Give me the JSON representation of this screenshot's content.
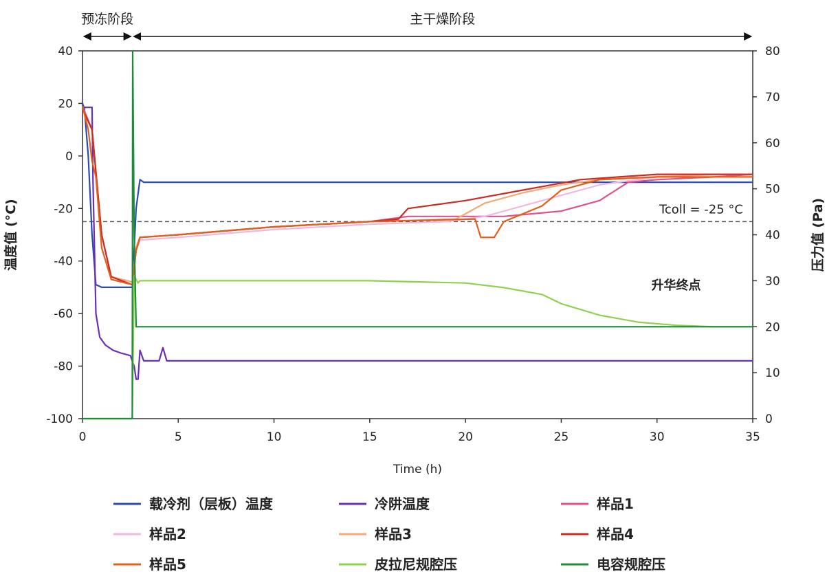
{
  "chart_data": {
    "type": "line",
    "xlabel": "Time (h)",
    "ylabel_left": "温度值 (°C)",
    "ylabel_right": "压力值 (Pa)",
    "xlim": [
      0,
      35
    ],
    "ylim_left": [
      -100,
      40
    ],
    "ylim_right": [
      0,
      80
    ],
    "x_ticks": [
      0,
      5,
      10,
      15,
      20,
      25,
      30,
      35
    ],
    "y_left_ticks": [
      -100,
      -80,
      -60,
      -40,
      -20,
      0,
      20,
      40
    ],
    "y_right_ticks": [
      0,
      10,
      20,
      30,
      40,
      50,
      60,
      70,
      80
    ],
    "grid": false,
    "legend_position": "bottom",
    "phases": [
      {
        "label": "预冻阶段",
        "x_start": 0,
        "x_end": 2.6
      },
      {
        "label": "主干燥阶段",
        "x_start": 2.6,
        "x_end": 35
      }
    ],
    "reference_line": {
      "label": "Tcoll = -25 °C",
      "y": -25
    },
    "annotation": {
      "text": "升华终点",
      "x": 31,
      "y": 29,
      "axis": "right"
    },
    "series": [
      {
        "name": "载冷剂（层板）温度",
        "axis": "left",
        "color": "#2b4db3",
        "x": [
          0,
          0.1,
          0.3,
          0.5,
          0.7,
          1.0,
          1.5,
          2.0,
          2.6,
          2.8,
          3.0,
          3.2,
          5,
          10,
          15,
          20,
          25,
          30,
          35
        ],
        "y": [
          20,
          18,
          0,
          -30,
          -49,
          -50,
          -50,
          -50,
          -50,
          -20,
          -9,
          -10,
          -10,
          -10,
          -10,
          -10,
          -10,
          -10,
          -10
        ]
      },
      {
        "name": "冷阱温度",
        "axis": "left",
        "color": "#6a2fb8",
        "x": [
          0,
          0.05,
          0.5,
          0.55,
          0.7,
          0.9,
          1.2,
          1.6,
          2.0,
          2.5,
          2.7,
          2.8,
          2.9,
          3.0,
          3.2,
          3.5,
          4.0,
          4.2,
          4.4,
          5,
          10,
          15,
          20,
          25,
          30,
          35
        ],
        "y": [
          18,
          18.5,
          18.5,
          -10,
          -60,
          -69,
          -72,
          -74,
          -75,
          -76,
          -80,
          -85,
          -85,
          -74,
          -78,
          -78,
          -78,
          -73,
          -78,
          -78,
          -78,
          -78,
          -78,
          -78,
          -78,
          -78
        ]
      },
      {
        "name": "样品1",
        "axis": "left",
        "color": "#e0508f",
        "x": [
          0,
          0.5,
          1.0,
          1.5,
          2.6,
          2.8,
          3,
          5,
          10,
          15,
          17,
          20,
          22,
          25,
          27,
          28.5,
          30,
          33,
          35
        ],
        "y": [
          19,
          10,
          -30,
          -46,
          -48,
          -35,
          -31,
          -30,
          -27,
          -25,
          -23,
          -23,
          -23,
          -21,
          -17,
          -10,
          -9,
          -8,
          -7
        ]
      },
      {
        "name": "样品2",
        "axis": "left",
        "color": "#f0b8e0",
        "x": [
          0,
          0.5,
          1.0,
          1.5,
          2.6,
          2.8,
          3,
          5,
          10,
          15,
          19,
          20,
          21,
          23,
          25,
          27,
          30,
          33,
          35
        ],
        "y": [
          18,
          10,
          -30,
          -46,
          -48,
          -36,
          -32,
          -31,
          -28,
          -26,
          -25,
          -24,
          -23,
          -19,
          -15,
          -11,
          -8,
          -7,
          -7
        ]
      },
      {
        "name": "样品3",
        "axis": "left",
        "color": "#f4a97a",
        "x": [
          0,
          0.5,
          1.0,
          1.5,
          2.6,
          2.8,
          3,
          5,
          10,
          15,
          19.5,
          21,
          23,
          25,
          27,
          30,
          33,
          35
        ],
        "y": [
          18,
          10,
          -30,
          -46,
          -48,
          -35,
          -31,
          -30,
          -27,
          -25,
          -24,
          -18,
          -14,
          -11,
          -9,
          -8,
          -7,
          -7
        ]
      },
      {
        "name": "样品4",
        "axis": "left",
        "color": "#cc2b24",
        "x": [
          0,
          0.5,
          1.0,
          1.5,
          2.6,
          2.8,
          3,
          5,
          10,
          15,
          16.5,
          17,
          20,
          23,
          26,
          28,
          30,
          33,
          35
        ],
        "y": [
          18,
          10,
          -30,
          -46,
          -49,
          -36,
          -31,
          -30,
          -27,
          -25,
          -24,
          -20,
          -17,
          -13,
          -9,
          -8,
          -7,
          -7,
          -7
        ]
      },
      {
        "name": "样品5",
        "axis": "left",
        "color": "#e0601a",
        "x": [
          0,
          0.3,
          0.5,
          0.7,
          1.0,
          1.5,
          2.6,
          2.8,
          3,
          5,
          10,
          15,
          20.5,
          20.8,
          21.5,
          22,
          24,
          25,
          27,
          30,
          33,
          35
        ],
        "y": [
          19,
          10,
          -2,
          -8,
          -35,
          -47,
          -49,
          -36,
          -31,
          -30,
          -27,
          -25,
          -24,
          -31,
          -31,
          -25,
          -19,
          -13,
          -9,
          -8,
          -8,
          -8
        ]
      },
      {
        "name": "皮拉尼规腔压",
        "axis": "right",
        "color": "#8fd14f",
        "x": [
          0,
          2.6,
          2.7,
          2.9,
          3.0,
          5,
          10,
          15,
          20,
          22,
          24,
          25,
          27,
          29,
          31,
          33,
          35
        ],
        "y": [
          0,
          0,
          31,
          29.5,
          30,
          30,
          30,
          30,
          29.5,
          28.5,
          27,
          25,
          22.5,
          21,
          20.3,
          20,
          20
        ]
      },
      {
        "name": "电容规腔压",
        "axis": "right",
        "color": "#1f8a3a",
        "x": [
          0,
          2.6,
          2.62,
          2.7,
          2.8,
          5,
          10,
          15,
          20,
          25,
          30,
          35
        ],
        "y": [
          0,
          0,
          80,
          40,
          20,
          20,
          20,
          20,
          20,
          20,
          20,
          20
        ]
      }
    ]
  }
}
